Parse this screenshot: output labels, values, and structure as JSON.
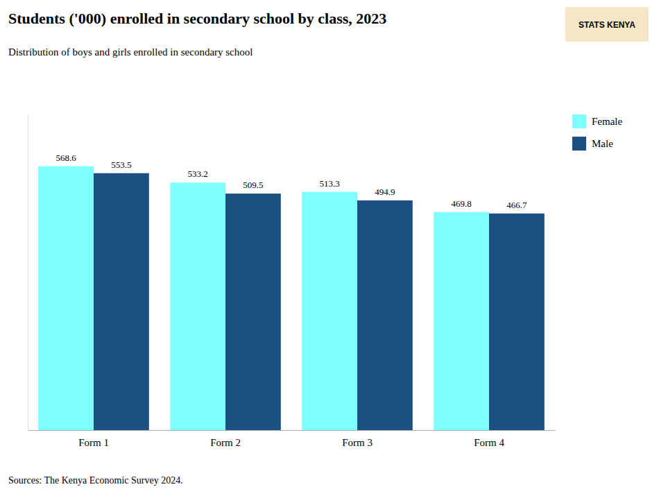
{
  "chart_data": {
    "type": "bar",
    "title": "Students ('000) enrolled in secondary school by class, 2023",
    "subtitle": "Distribution of boys and girls enrolled in secondary school",
    "annotations": [
      "Sources: The Kenya Economic Survey 2024.",
      "STATS KENYA"
    ],
    "categories": [
      "Form 1",
      "Form 2",
      "Form 3",
      "Form 4"
    ],
    "series": [
      {
        "name": "Female",
        "color": "#7FFFFF",
        "values": [
          568.6,
          533.2,
          513.3,
          469.8
        ]
      },
      {
        "name": "Male",
        "color": "#1C4F82",
        "values": [
          553.5,
          509.5,
          494.9,
          466.7
        ]
      }
    ],
    "ylim": [
      0,
      680
    ],
    "grid": false,
    "legend": "upper right",
    "data_labels": true,
    "tick_labels": "x"
  }
}
